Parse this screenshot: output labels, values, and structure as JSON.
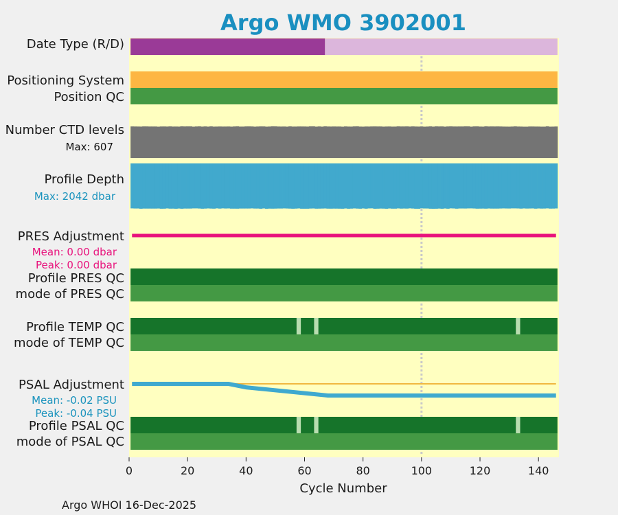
{
  "chart_data": {
    "type": "bar",
    "title": "Argo WMO 3902001",
    "xlabel": "Cycle Number",
    "xlim": [
      0,
      147
    ],
    "xticks": [
      0,
      20,
      40,
      60,
      80,
      100,
      120,
      140
    ],
    "highlight_cycle": 100,
    "rows": {
      "date_type": {
        "label": "Date Type (R/D)",
        "segments": [
          {
            "from": 0.5,
            "to": 67,
            "code": "R"
          },
          {
            "from": 67,
            "to": 146.5,
            "code": "D"
          }
        ]
      },
      "positioning": {
        "label": "Positioning System",
        "from": 0.5,
        "to": 146.5
      },
      "position_qc": {
        "label": "Position QC",
        "from": 0.5,
        "to": 146.5
      },
      "ctd_levels": {
        "label": "Number CTD levels",
        "max_text": "Max: 607",
        "max": 607,
        "lo": 560,
        "hi": 607
      },
      "profile_depth": {
        "label": "Profile Depth",
        "max_text": "Max: 2042 dbar",
        "max": 2042,
        "lo": 1950,
        "hi": 2042
      },
      "pres_adj": {
        "label": "PRES Adjustment",
        "mean_text": "Mean: 0.00 dbar",
        "peak_text": "Peak: 0.00 dbar",
        "mean": 0.0,
        "peak": 0.0
      },
      "profile_pres_qc": {
        "label": "Profile PRES QC",
        "bad_cycles": []
      },
      "mode_pres_qc": {
        "label": "mode of PRES QC"
      },
      "profile_temp_qc": {
        "label": "Profile TEMP QC",
        "bad_cycles": [
          58,
          64,
          133
        ]
      },
      "mode_temp_qc": {
        "label": "mode of TEMP QC"
      },
      "psal_adj": {
        "label": "PSAL Adjustment",
        "mean_text": "Mean: -0.02 PSU",
        "peak_text": "Peak: -0.04 PSU",
        "mean": -0.02,
        "peak": -0.04,
        "points": [
          [
            1,
            0.0
          ],
          [
            34,
            0.0
          ],
          [
            40,
            -0.012
          ],
          [
            68,
            -0.04
          ],
          [
            146,
            -0.04
          ]
        ]
      },
      "profile_psal_qc": {
        "label": "Profile PSAL QC",
        "bad_cycles": [
          58,
          64,
          133
        ]
      },
      "mode_psal_qc": {
        "label": "mode of PSAL QC"
      }
    }
  },
  "footer": "Argo WHOI 16-Dec-2025",
  "colors": {
    "background": "#f0f0f0",
    "panel": "#ffffc0",
    "title": "#1a8fc0",
    "realtime": "#9a3a97",
    "delayed": "#dcb6dc",
    "positioning": "#fdb643",
    "qc_green": "#449944",
    "qc_dark": "#16742a",
    "qc_light": "#b9ddb0",
    "ctd": "#747474",
    "depth": "#41a9cd",
    "depth_text": "#1a93bd",
    "pres": "#e8127c",
    "psal": "#3fa9cf",
    "psal_zero": "#f0b840",
    "dotted": "#c9c9c9"
  }
}
